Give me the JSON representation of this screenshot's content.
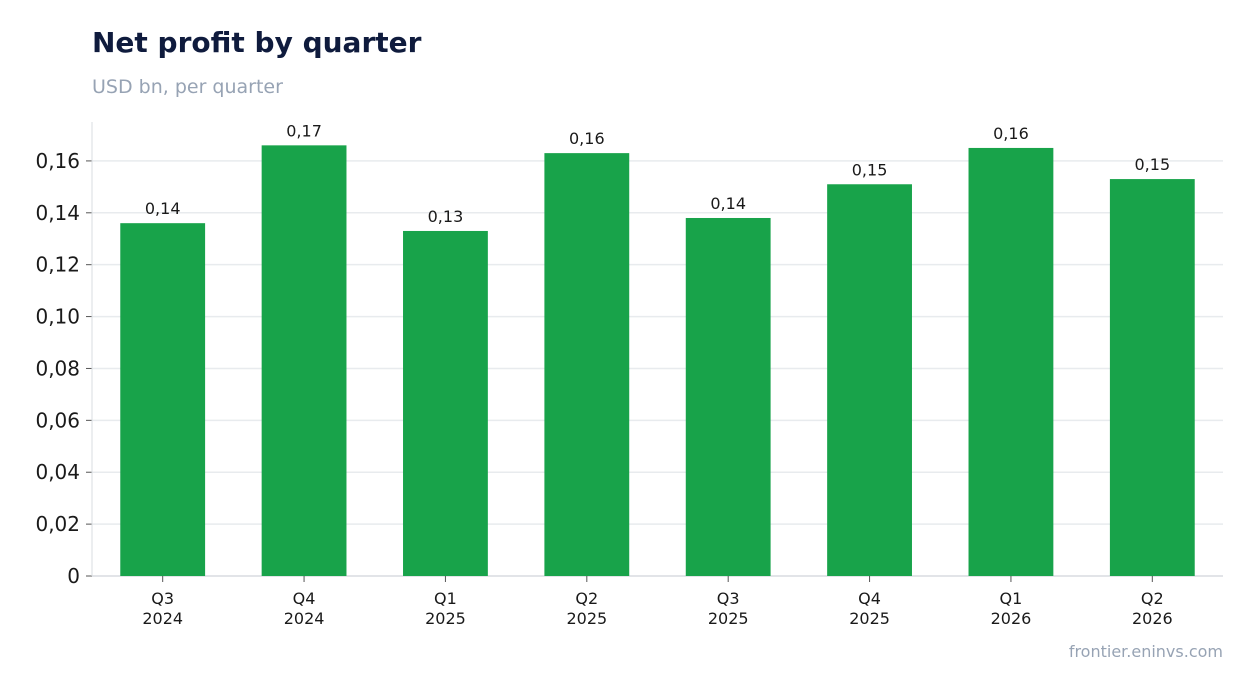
{
  "chart_data": {
    "type": "bar",
    "title": "Net profit by quarter",
    "subtitle": "USD bn, per quarter",
    "xlabel": "",
    "ylabel": "",
    "categories": [
      [
        "Q3",
        "2024"
      ],
      [
        "Q4",
        "2024"
      ],
      [
        "Q1",
        "2025"
      ],
      [
        "Q2",
        "2025"
      ],
      [
        "Q3",
        "2025"
      ],
      [
        "Q4",
        "2025"
      ],
      [
        "Q1",
        "2026"
      ],
      [
        "Q2",
        "2026"
      ]
    ],
    "values": [
      0.136,
      0.166,
      0.133,
      0.163,
      0.138,
      0.151,
      0.165,
      0.153
    ],
    "data_labels": [
      "0,14",
      "0,17",
      "0,13",
      "0,16",
      "0,14",
      "0,15",
      "0,16",
      "0,15"
    ],
    "y_ticks": [
      0,
      0.02,
      0.04,
      0.06,
      0.08,
      0.1,
      0.12,
      0.14,
      0.16
    ],
    "y_tick_labels": [
      "0",
      "0,02",
      "0,04",
      "0,06",
      "0,08",
      "0,10",
      "0,12",
      "0,14",
      "0,16"
    ],
    "ylim": [
      0,
      0.175
    ],
    "grid": true,
    "legend": "none",
    "bar_color": "#18a34a"
  },
  "source": "frontier.eninvs.com"
}
